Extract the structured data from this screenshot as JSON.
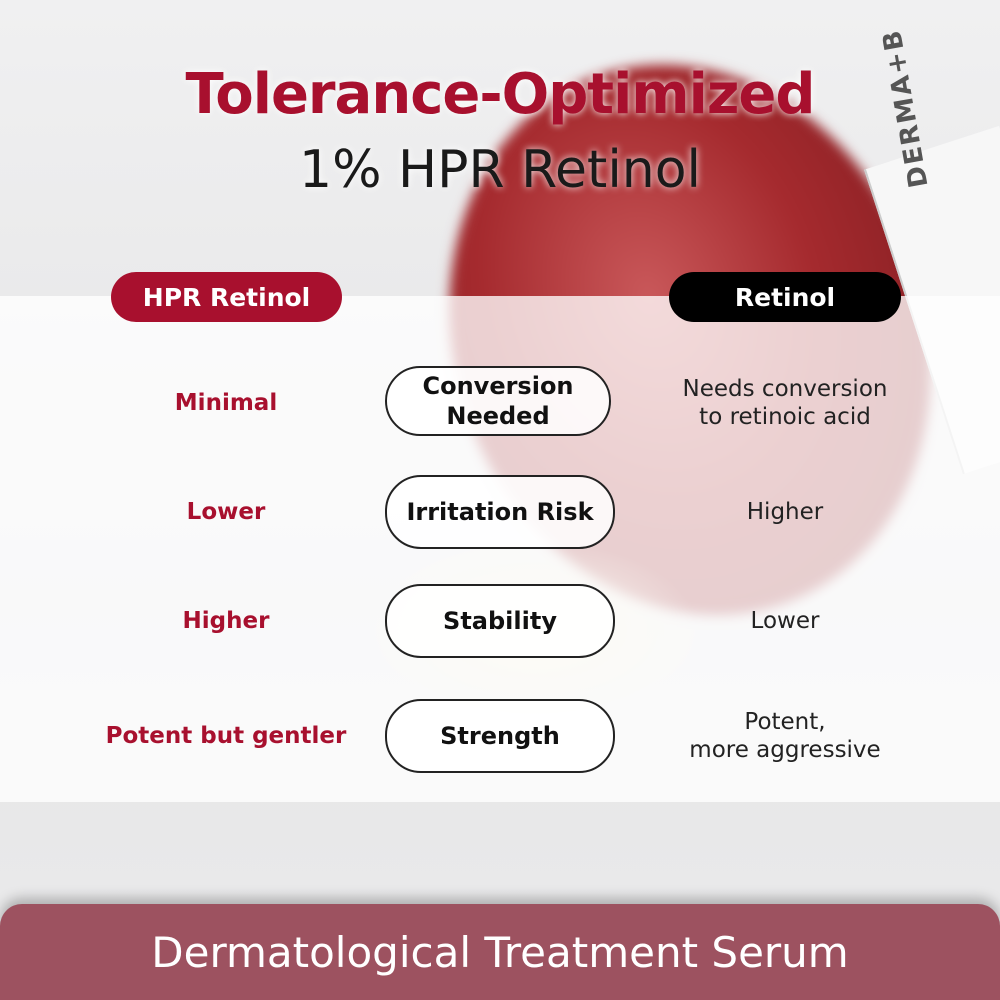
{
  "title": {
    "line1": "Tolerance-Optimized",
    "line2": "1% HPR Retinol"
  },
  "logo_text": "DERMA+B",
  "columns": {
    "left": "HPR Retinol",
    "right": "Retinol"
  },
  "rows": [
    {
      "left": "Minimal",
      "criterion": "Conversion Needed",
      "right": "Needs conversion\nto retinoic acid"
    },
    {
      "left": "Lower",
      "criterion": "Irritation Risk",
      "right": "Higher"
    },
    {
      "left": "Higher",
      "criterion": "Stability",
      "right": "Lower"
    },
    {
      "left": "Potent but gentler",
      "criterion": "Strength",
      "right": "Potent,\nmore aggressive"
    }
  ],
  "banner": "Dermatological Treatment Serum",
  "colors": {
    "accent": "#a8102e",
    "banner": "#9d5260",
    "dark": "#000000"
  }
}
